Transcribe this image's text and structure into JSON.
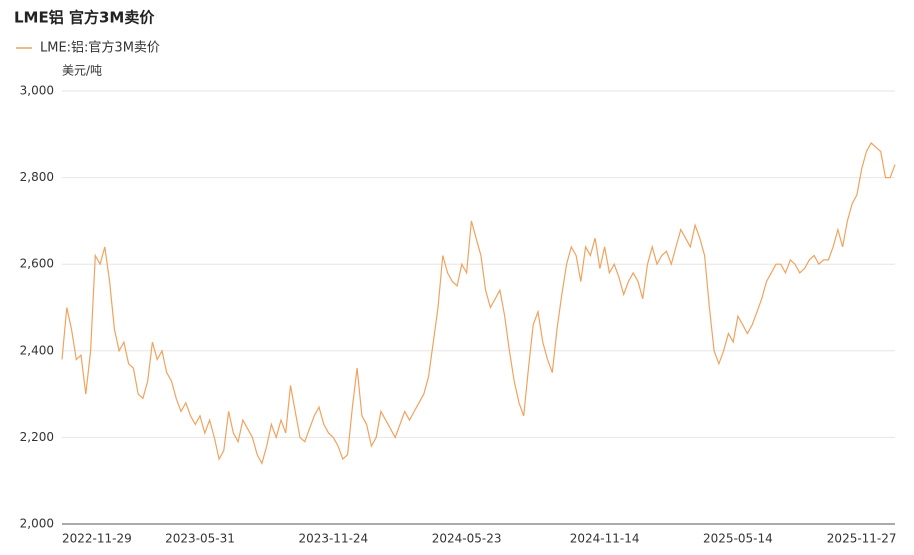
{
  "chart_data": {
    "type": "line",
    "title": "LME铝 官方3M卖价",
    "y_label": "美元/吨",
    "categories": [
      "2022-11-29",
      null,
      null,
      null,
      null,
      null,
      null,
      null,
      null,
      null,
      null,
      null,
      null,
      null,
      null,
      null,
      null,
      null,
      null,
      null,
      null,
      null,
      null,
      null,
      null,
      null,
      null,
      null,
      null,
      "2023-05-31",
      null,
      null,
      null,
      null,
      null,
      null,
      null,
      null,
      null,
      null,
      null,
      null,
      null,
      null,
      null,
      null,
      null,
      null,
      null,
      null,
      null,
      null,
      null,
      null,
      null,
      null,
      null,
      "2023-11-24",
      null,
      null,
      null,
      null,
      null,
      null,
      null,
      null,
      null,
      null,
      null,
      null,
      null,
      null,
      null,
      null,
      null,
      null,
      null,
      null,
      null,
      null,
      null,
      null,
      null,
      null,
      null,
      "2024-05-23",
      null,
      null,
      null,
      null,
      null,
      null,
      null,
      null,
      null,
      null,
      null,
      null,
      null,
      null,
      null,
      null,
      null,
      null,
      null,
      null,
      null,
      null,
      null,
      null,
      null,
      null,
      null,
      null,
      "2024-11-14",
      null,
      null,
      null,
      null,
      null,
      null,
      null,
      null,
      null,
      null,
      null,
      null,
      null,
      null,
      null,
      null,
      null,
      null,
      null,
      null,
      null,
      null,
      null,
      null,
      null,
      null,
      null,
      "2025-05-14",
      null,
      null,
      null,
      null,
      null,
      null,
      null,
      null,
      null,
      null,
      null,
      null,
      null,
      null,
      null,
      null,
      null,
      null,
      null,
      null,
      null,
      null,
      null,
      null,
      null,
      "2025-11-27",
      null,
      null,
      null,
      null,
      null,
      null,
      null
    ],
    "series": [
      {
        "name": "LME:铝:官方3M卖价",
        "color": "#f0a35e",
        "values": [
          2380,
          2500,
          2450,
          2380,
          2390,
          2300,
          2400,
          2620,
          2600,
          2640,
          2560,
          2450,
          2400,
          2420,
          2370,
          2360,
          2300,
          2290,
          2330,
          2420,
          2380,
          2400,
          2350,
          2330,
          2290,
          2260,
          2280,
          2250,
          2230,
          2250,
          2210,
          2240,
          2200,
          2150,
          2170,
          2260,
          2210,
          2190,
          2240,
          2220,
          2200,
          2160,
          2140,
          2180,
          2230,
          2200,
          2240,
          2210,
          2320,
          2260,
          2200,
          2190,
          2220,
          2250,
          2270,
          2230,
          2210,
          2200,
          2180,
          2150,
          2160,
          2270,
          2360,
          2250,
          2230,
          2180,
          2200,
          2260,
          2240,
          2220,
          2200,
          2230,
          2260,
          2240,
          2260,
          2280,
          2300,
          2340,
          2420,
          2500,
          2620,
          2580,
          2560,
          2550,
          2600,
          2580,
          2700,
          2660,
          2620,
          2540,
          2500,
          2520,
          2540,
          2480,
          2400,
          2330,
          2280,
          2250,
          2360,
          2460,
          2490,
          2420,
          2380,
          2350,
          2450,
          2530,
          2600,
          2640,
          2620,
          2560,
          2640,
          2620,
          2660,
          2590,
          2640,
          2580,
          2600,
          2570,
          2530,
          2560,
          2580,
          2560,
          2520,
          2600,
          2640,
          2600,
          2620,
          2630,
          2600,
          2640,
          2680,
          2660,
          2640,
          2690,
          2660,
          2620,
          2500,
          2400,
          2370,
          2400,
          2440,
          2420,
          2480,
          2460,
          2440,
          2460,
          2490,
          2520,
          2560,
          2580,
          2600,
          2600,
          2580,
          2610,
          2600,
          2580,
          2590,
          2610,
          2620,
          2600,
          2610,
          2610,
          2640,
          2680,
          2640,
          2700,
          2740,
          2760,
          2820,
          2860,
          2880,
          2870,
          2860,
          2800,
          2800,
          2830
        ]
      }
    ],
    "ylim": [
      2000,
      3000
    ],
    "yticks": [
      {
        "value": 2000,
        "label": "2,000"
      },
      {
        "value": 2200,
        "label": "2,200"
      },
      {
        "value": 2400,
        "label": "2,400"
      },
      {
        "value": 2600,
        "label": "2,600"
      },
      {
        "value": 2800,
        "label": "2,800"
      },
      {
        "value": 3000,
        "label": "3,000"
      }
    ],
    "grid": true
  }
}
